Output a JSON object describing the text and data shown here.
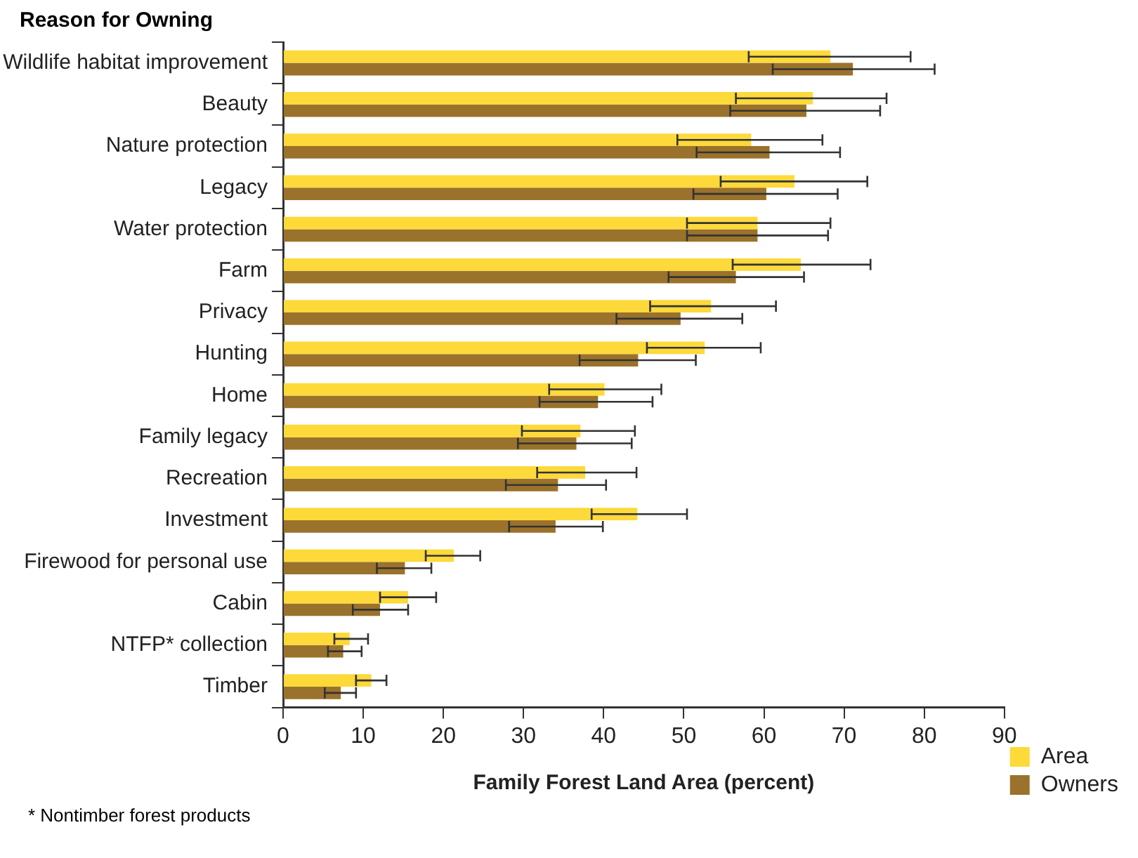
{
  "chart_data": {
    "type": "bar",
    "orientation": "horizontal",
    "xlabel": "Family Forest Land Area (percent)",
    "ylabel": "Reason for Owning",
    "categories": [
      "Wildlife habitat improvement",
      "Beauty",
      "Nature protection",
      "Legacy",
      "Water protection",
      "Farm",
      "Privacy",
      "Hunting",
      "Home",
      "Family legacy",
      "Recreation",
      "Investment",
      "Firewood for personal use",
      "Cabin",
      "NTFP* collection",
      "Timber"
    ],
    "series": [
      {
        "name": "Area",
        "color": "#fdd93a",
        "values": [
          68.3,
          66.1,
          58.4,
          63.8,
          59.2,
          64.6,
          53.4,
          52.6,
          40.1,
          37.1,
          37.7,
          44.2,
          21.3,
          15.6,
          8.3,
          11.0
        ],
        "errors": [
          [
            58.1,
            78.3
          ],
          [
            56.5,
            75.3
          ],
          [
            49.2,
            67.3
          ],
          [
            54.6,
            72.9
          ],
          [
            50.4,
            68.3
          ],
          [
            56.1,
            73.3
          ],
          [
            45.8,
            61.5
          ],
          [
            45.4,
            59.6
          ],
          [
            33.2,
            47.2
          ],
          [
            29.8,
            43.9
          ],
          [
            31.7,
            44.1
          ],
          [
            38.5,
            50.4
          ],
          [
            17.8,
            24.6
          ],
          [
            12.1,
            19.1
          ],
          [
            6.4,
            10.6
          ],
          [
            9.1,
            12.9
          ]
        ]
      },
      {
        "name": "Owners",
        "color": "#9b722b",
        "values": [
          71.1,
          65.3,
          60.7,
          60.3,
          59.2,
          56.5,
          49.6,
          44.3,
          39.3,
          36.6,
          34.3,
          34.0,
          15.2,
          12.1,
          7.5,
          7.2
        ],
        "errors": [
          [
            61.1,
            81.3
          ],
          [
            55.8,
            74.5
          ],
          [
            51.6,
            69.5
          ],
          [
            51.2,
            69.2
          ],
          [
            50.4,
            68.0
          ],
          [
            48.1,
            65.0
          ],
          [
            41.6,
            57.3
          ],
          [
            37.0,
            51.5
          ],
          [
            32.0,
            46.1
          ],
          [
            29.3,
            43.5
          ],
          [
            27.8,
            40.3
          ],
          [
            28.2,
            39.9
          ],
          [
            11.7,
            18.5
          ],
          [
            8.7,
            15.6
          ],
          [
            5.6,
            9.8
          ],
          [
            5.2,
            9.1
          ]
        ]
      }
    ],
    "xlim": [
      0,
      90
    ],
    "xticks": [
      0,
      10,
      20,
      30,
      40,
      50,
      60,
      70,
      80,
      90
    ],
    "grid": false,
    "legend": "bottom right",
    "annotations": [
      "* Nontimber forest products"
    ]
  }
}
